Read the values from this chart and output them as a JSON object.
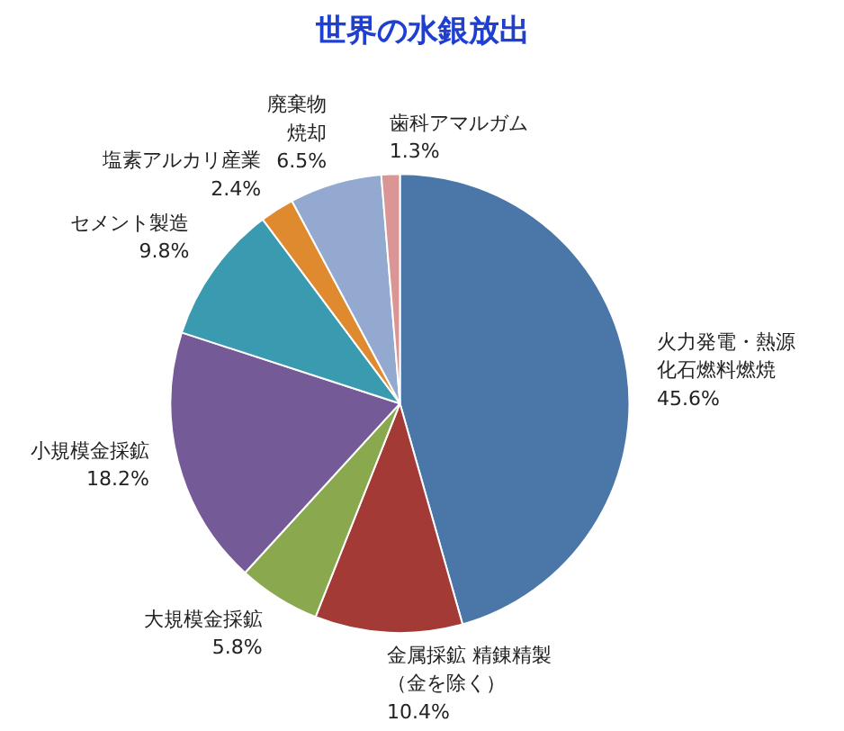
{
  "chart_data": {
    "type": "pie",
    "title": "世界の水銀放出",
    "categories": [
      "火力発電・熱源化石燃料燃焼",
      "金属採鉱 精錬精製（金を除く）",
      "大規模金採鉱",
      "小規模金採鉱",
      "セメント製造",
      "塩素アルカリ産業",
      "廃棄物焼却",
      "歯科アマルガム"
    ],
    "values": [
      45.6,
      10.4,
      5.8,
      18.2,
      9.8,
      2.4,
      6.5,
      1.3
    ],
    "colors": [
      "#4a76a8",
      "#a33a35",
      "#8aa94e",
      "#745a96",
      "#3a9ab0",
      "#e08a30",
      "#93a9d0",
      "#d99694"
    ],
    "value_labels": [
      "45.6%",
      "10.4%",
      "5.8%",
      "18.2%",
      "9.8%",
      "2.4%",
      "6.5%",
      "1.3%"
    ]
  }
}
